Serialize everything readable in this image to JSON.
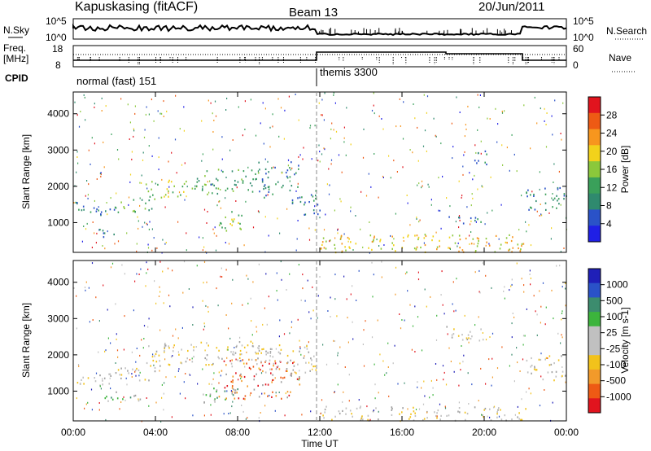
{
  "header": {
    "station": "Kapuskasing (fitACF)",
    "beam": "Beam 13",
    "date": "20/Jun/2011"
  },
  "strips": {
    "noise": {
      "left_label": "N.Sky",
      "right_label": "N.Search",
      "left_ticks": [
        "10^5",
        "10^0"
      ],
      "right_ticks": [
        "10^5",
        "10^0"
      ]
    },
    "freq": {
      "left_label_1": "Freq.",
      "left_label_2": "[MHz]",
      "right_label": "Nave",
      "left_ticks": [
        "18",
        "8"
      ],
      "right_ticks": [
        "60",
        "0"
      ]
    },
    "cpid": {
      "label": "CPID",
      "modes": [
        "normal (fast) 151",
        "themis 3300"
      ]
    }
  },
  "colors": {
    "power": [
      "#1f1fe6",
      "#2a52c8",
      "#2f8a6e",
      "#3aa05a",
      "#8bc83b",
      "#f2d21b",
      "#f7961e",
      "#ee5a14",
      "#e1141e"
    ],
    "velocity": [
      "#e1141e",
      "#ee5a14",
      "#f29a2a",
      "#f2c21b",
      "#c0c0c0",
      "#c0c0c0",
      "#3cb43c",
      "#3c8c6e",
      "#2a52c8",
      "#1f1fb8"
    ],
    "ground": "#a0a0a0"
  },
  "chart_data": [
    {
      "type": "heatmap",
      "name": "power",
      "ylabel": "Slant Range [km]",
      "ylim": [
        180,
        4600
      ],
      "yticks": [
        "1000",
        "2000",
        "3000",
        "4000"
      ],
      "xlim_hours": [
        0,
        24
      ],
      "colorbar_label": "Power [dB]",
      "colorbar_ticks": [
        "4",
        "8",
        "12",
        "16",
        "20",
        "24",
        "28"
      ],
      "scatter_patches": [
        {
          "t0": 0.0,
          "t1": 2.0,
          "r0": 1200,
          "r1": 1600,
          "level": 2
        },
        {
          "t0": 1.0,
          "t1": 2.0,
          "r0": 600,
          "r1": 900,
          "level": 2
        },
        {
          "t0": 2.0,
          "t1": 4.0,
          "r0": 1300,
          "r1": 1700,
          "level": 3
        },
        {
          "t0": 3.5,
          "t1": 6.0,
          "r0": 1700,
          "r1": 2200,
          "level": 4
        },
        {
          "t0": 6.0,
          "t1": 9.0,
          "r0": 1800,
          "r1": 2500,
          "level": 3
        },
        {
          "t0": 7.0,
          "t1": 8.5,
          "r0": 800,
          "r1": 1400,
          "level": 4
        },
        {
          "t0": 9.0,
          "t1": 11.0,
          "r0": 1700,
          "r1": 2700,
          "level": 2
        },
        {
          "t0": 10.5,
          "t1": 12.0,
          "r0": 1200,
          "r1": 1800,
          "level": 2
        },
        {
          "t0": 12.0,
          "t1": 22.0,
          "r0": 200,
          "r1": 700,
          "level": 5
        },
        {
          "t0": 18.0,
          "t1": 20.0,
          "r0": 1000,
          "r1": 1200,
          "level": 2
        },
        {
          "t0": 19.5,
          "t1": 20.5,
          "r0": 2600,
          "r1": 3000,
          "level": 2
        },
        {
          "t0": 22.0,
          "t1": 24.0,
          "r0": 1300,
          "r1": 2000,
          "level": 2
        }
      ]
    },
    {
      "type": "heatmap",
      "name": "velocity",
      "ylabel": "Slant Range [km]",
      "ylim": [
        180,
        4600
      ],
      "yticks": [
        "1000",
        "2000",
        "3000",
        "4000"
      ],
      "xlim_hours": [
        0,
        24
      ],
      "xticks": [
        "00:00",
        "04:00",
        "08:00",
        "12:00",
        "16:00",
        "20:00",
        "00:00"
      ],
      "xlabel": "Time UT",
      "colorbar_label": "Velocity [m s-1]",
      "colorbar_ticks": [
        "1000",
        "500",
        "100",
        "25",
        "-25",
        "-100",
        "-500",
        "-1000"
      ],
      "scatter_patches": [
        {
          "t0": 0.0,
          "t1": 2.0,
          "r0": 1100,
          "r1": 1500,
          "level": 4
        },
        {
          "t0": 2.0,
          "t1": 4.0,
          "r0": 1300,
          "r1": 1700,
          "level": 4
        },
        {
          "t0": 1.5,
          "t1": 3.5,
          "r0": 700,
          "r1": 1000,
          "level": 6
        },
        {
          "t0": 3.5,
          "t1": 9.0,
          "r0": 1700,
          "r1": 2400,
          "level": 4
        },
        {
          "t0": 6.0,
          "t1": 8.0,
          "r0": 700,
          "r1": 1100,
          "level": 6
        },
        {
          "t0": 7.0,
          "t1": 11.0,
          "r0": 800,
          "r1": 1900,
          "level": 1
        },
        {
          "t0": 9.0,
          "t1": 12.0,
          "r0": 1500,
          "r1": 2300,
          "level": 4
        },
        {
          "t0": 12.0,
          "t1": 22.0,
          "r0": 200,
          "r1": 600,
          "level": 4
        },
        {
          "t0": 18.0,
          "t1": 20.0,
          "r0": 2400,
          "r1": 2800,
          "level": 4
        },
        {
          "t0": 22.0,
          "t1": 24.0,
          "r0": 1300,
          "r1": 2000,
          "level": 4
        }
      ]
    }
  ]
}
